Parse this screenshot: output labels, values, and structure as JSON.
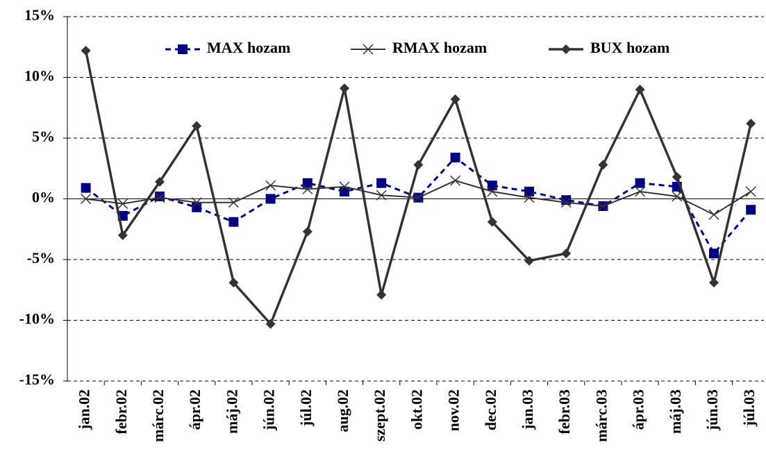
{
  "chart_data": {
    "type": "line",
    "categories": [
      "jan.02",
      "febr.02",
      "márc.02",
      "ápr.02",
      "máj.02",
      "jún.02",
      "júl.02",
      "aug.02",
      "szept.02",
      "okt.02",
      "nov.02",
      "dec.02",
      "jan.03",
      "febr.03",
      "márc.03",
      "ápr.03",
      "máj.03",
      "jún.03",
      "júl.03"
    ],
    "series": [
      {
        "name": "MAX hozam",
        "color": "#000080",
        "marker": "square",
        "dashed": true,
        "width": 3,
        "values": [
          0.9,
          -1.4,
          0.2,
          -0.7,
          -1.9,
          0.0,
          1.3,
          0.6,
          1.3,
          0.1,
          3.4,
          1.1,
          0.6,
          -0.1,
          -0.6,
          1.3,
          1.0,
          -4.5,
          -0.9
        ]
      },
      {
        "name": "RMAX hozam",
        "color": "#333333",
        "marker": "x",
        "dashed": false,
        "width": 2,
        "values": [
          0.0,
          -0.4,
          0.1,
          -0.3,
          -0.3,
          1.1,
          0.8,
          1.0,
          0.3,
          0.1,
          1.5,
          0.6,
          0.1,
          -0.3,
          -0.6,
          0.6,
          0.2,
          -1.3,
          0.6
        ]
      },
      {
        "name": "BUX hozam",
        "color": "#333333",
        "marker": "diamond",
        "dashed": false,
        "width": 3.5,
        "values": [
          12.2,
          -3.0,
          1.4,
          6.0,
          -6.9,
          -10.3,
          -2.7,
          9.1,
          -7.9,
          2.8,
          8.2,
          -1.9,
          -5.1,
          -4.5,
          2.8,
          9.0,
          1.8,
          -6.9,
          6.2
        ]
      }
    ],
    "ylim": [
      -15,
      15
    ],
    "yticks": [
      {
        "value": -15,
        "label": "-15%"
      },
      {
        "value": -10,
        "label": "-10%"
      },
      {
        "value": -5,
        "label": "-5%"
      },
      {
        "value": 0,
        "label": "0%"
      },
      {
        "value": 5,
        "label": "5%"
      },
      {
        "value": 10,
        "label": "10%"
      },
      {
        "value": 15,
        "label": "15%"
      }
    ],
    "grid": true,
    "legend": "top"
  }
}
